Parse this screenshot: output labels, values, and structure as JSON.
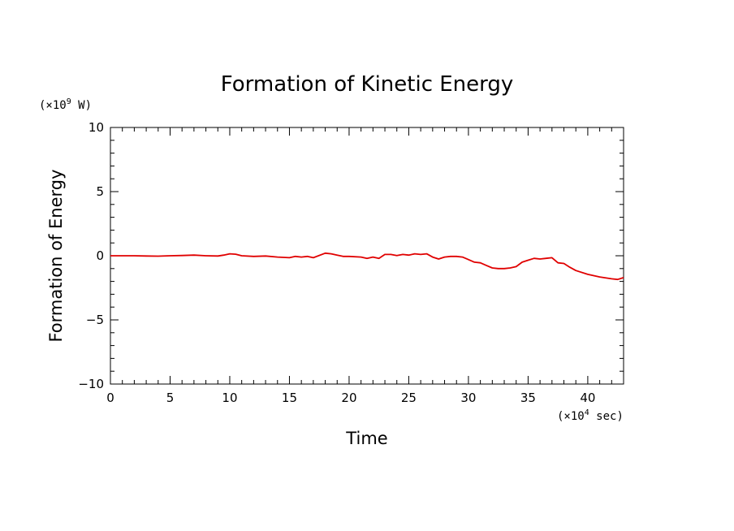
{
  "chart_data": {
    "type": "line",
    "title": "Formation of Kinetic Energy",
    "xlabel": "Time",
    "ylabel": "Formation of Energy",
    "y_unit": {
      "prefix": "(×10",
      "exp": "9",
      "suffix": " W)"
    },
    "x_unit": {
      "prefix": "(×10",
      "exp": "4",
      "suffix": " sec)"
    },
    "xlim": [
      0,
      43
    ],
    "ylim": [
      -10,
      10
    ],
    "x_ticks": [
      0,
      5,
      10,
      15,
      20,
      25,
      30,
      35,
      40
    ],
    "x_tick_labels": [
      "0",
      "5",
      "10",
      "15",
      "20",
      "25",
      "30",
      "35",
      "40"
    ],
    "y_ticks": [
      -10,
      -5,
      0,
      5,
      10
    ],
    "y_tick_labels": [
      "−10",
      "−5",
      "0",
      "5",
      "10"
    ],
    "grid": false,
    "series": [
      {
        "name": "Formation of Kinetic Energy",
        "color": "#e00000",
        "x": [
          0,
          1,
          2,
          3,
          4,
          5,
          6,
          7,
          8,
          9,
          9.5,
          10,
          10.5,
          11,
          12,
          13,
          14,
          15,
          15.5,
          16,
          16.5,
          17,
          18,
          18.5,
          19,
          19.5,
          20,
          21,
          21.5,
          22,
          22.5,
          23,
          23.5,
          24,
          24.5,
          25,
          25.5,
          26,
          26.5,
          27,
          27.5,
          28,
          28.5,
          29,
          29.5,
          30,
          30.5,
          31,
          31.5,
          32,
          32.5,
          33,
          33.5,
          34,
          34.5,
          35,
          35.5,
          36,
          36.5,
          37,
          37.5,
          38,
          38.5,
          39,
          40,
          41,
          42,
          42.5,
          43
        ],
        "values": [
          0.0,
          0.0,
          0.0,
          -0.02,
          -0.03,
          0.0,
          0.02,
          0.05,
          0.0,
          -0.02,
          0.05,
          0.15,
          0.12,
          0.0,
          -0.05,
          -0.02,
          -0.1,
          -0.15,
          -0.05,
          -0.1,
          -0.05,
          -0.15,
          0.2,
          0.15,
          0.05,
          -0.05,
          -0.05,
          -0.1,
          -0.2,
          -0.1,
          -0.2,
          0.1,
          0.1,
          0.02,
          0.1,
          0.05,
          0.15,
          0.1,
          0.15,
          -0.1,
          -0.25,
          -0.1,
          -0.05,
          -0.05,
          -0.1,
          -0.3,
          -0.5,
          -0.55,
          -0.75,
          -0.95,
          -1.0,
          -1.0,
          -0.95,
          -0.85,
          -0.5,
          -0.35,
          -0.2,
          -0.25,
          -0.2,
          -0.15,
          -0.55,
          -0.6,
          -0.9,
          -1.15,
          -1.45,
          -1.65,
          -1.8,
          -1.85,
          -1.7
        ]
      }
    ]
  }
}
